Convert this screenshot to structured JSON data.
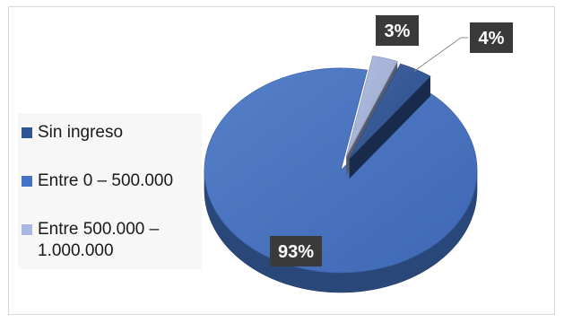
{
  "chart_data": {
    "type": "pie",
    "title": "",
    "categories": [
      "Sin ingreso",
      "Entre 0 – 500.000",
      "Entre 500.000 – 1.000.000"
    ],
    "values": [
      4,
      93,
      3
    ],
    "data_labels": [
      "4%",
      "93%",
      "3%"
    ],
    "legend": {
      "position": "left",
      "entries": [
        {
          "label_line1": "Sin ingreso",
          "label_line2": "",
          "color": "#2f5597"
        },
        {
          "label_line1": "Entre 0 – 500.000",
          "label_line2": "",
          "color": "#4472c4"
        },
        {
          "label_line1": "Entre 500.000 –",
          "label_line2": "1.000.000",
          "color": "#a9b8e0"
        }
      ]
    },
    "colors": {
      "sin_ingreso": "#2f5597",
      "entre_0_500": "#4472c4",
      "entre_500_1000": "#a9b8e0",
      "label_bg": "#3a3a3a",
      "label_text": "#ffffff"
    },
    "style": "3d-exploded"
  }
}
